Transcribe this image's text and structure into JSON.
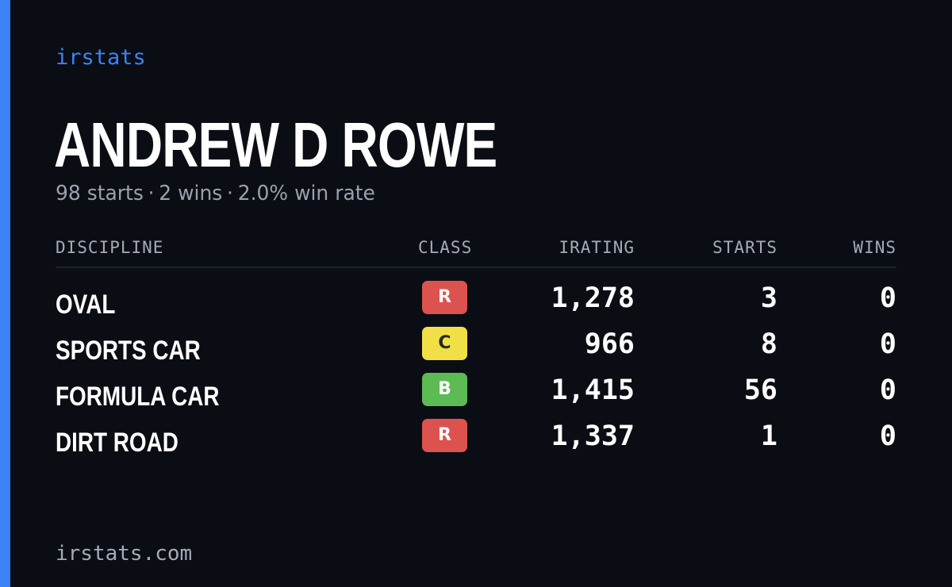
{
  "brand": "irstats",
  "driver": {
    "name": "ANDREW D ROWE"
  },
  "summary": {
    "starts": "98 starts",
    "wins": "2 wins",
    "win_rate": "2.0% win rate",
    "separator": "·"
  },
  "table": {
    "headers": {
      "discipline": "DISCIPLINE",
      "class": "CLASS",
      "irating": "IRATING",
      "starts": "STARTS",
      "wins": "WINS"
    },
    "rows": [
      {
        "discipline": "OVAL",
        "class": "R",
        "irating": "1,278",
        "starts": "3",
        "wins": "0"
      },
      {
        "discipline": "SPORTS CAR",
        "class": "C",
        "irating": "966",
        "starts": "8",
        "wins": "0"
      },
      {
        "discipline": "FORMULA CAR",
        "class": "B",
        "irating": "1,415",
        "starts": "56",
        "wins": "0"
      },
      {
        "discipline": "DIRT ROAD",
        "class": "R",
        "irating": "1,337",
        "starts": "1",
        "wins": "0"
      }
    ]
  },
  "class_colors": {
    "R": {
      "bg": "#dc524f",
      "fg": "#ffffff"
    },
    "C": {
      "bg": "#f0e046",
      "fg": "#2a2a12"
    },
    "B": {
      "bg": "#5cbb52",
      "fg": "#ffffff"
    }
  },
  "colors": {
    "accent": "#3b82f6",
    "background": "#0b0d14"
  },
  "footer": {
    "url": "irstats.com"
  }
}
